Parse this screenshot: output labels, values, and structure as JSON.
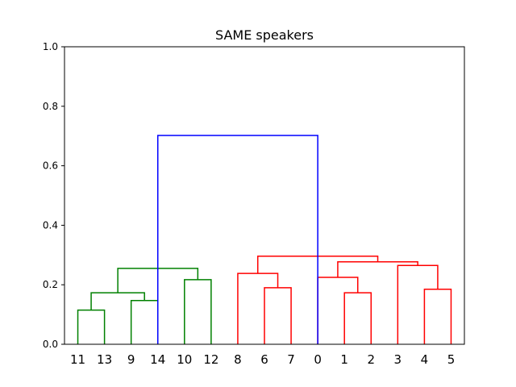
{
  "chart_data": {
    "type": "dendrogram",
    "title": "SAME speakers",
    "xlabel": "",
    "ylabel": "",
    "ylim": [
      0,
      1.0
    ],
    "yticks": [
      "0.0",
      "0.2",
      "0.4",
      "0.6",
      "0.8",
      "1.0"
    ],
    "leaf_order": [
      "11",
      "13",
      "9",
      "14",
      "10",
      "12",
      "8",
      "6",
      "7",
      "0",
      "1",
      "2",
      "3",
      "4",
      "5"
    ],
    "grid": false,
    "colors": {
      "cluster_green": "#008000",
      "cluster_red": "#ff0000",
      "root_blue": "#0000ff"
    },
    "links": [
      {
        "left": 0,
        "right": 1,
        "height": 0.115,
        "color": "cluster_green"
      },
      {
        "left": 2,
        "right": 3,
        "height": 0.147,
        "color": "cluster_green"
      },
      {
        "left": 0.5,
        "right": 2.5,
        "height": 0.173,
        "color": "cluster_green"
      },
      {
        "left": 4,
        "right": 5,
        "height": 0.217,
        "color": "cluster_green"
      },
      {
        "left": 1.5,
        "right": 4.5,
        "height": 0.255,
        "color": "cluster_green"
      },
      {
        "left": 7,
        "right": 8,
        "height": 0.19,
        "color": "cluster_red"
      },
      {
        "left": 6,
        "right": 7.5,
        "height": 0.238,
        "color": "cluster_red"
      },
      {
        "left": 10,
        "right": 11,
        "height": 0.173,
        "color": "cluster_red"
      },
      {
        "left": 9,
        "right": 10.5,
        "height": 0.225,
        "color": "cluster_red"
      },
      {
        "left": 13,
        "right": 14,
        "height": 0.185,
        "color": "cluster_red"
      },
      {
        "left": 12,
        "right": 13.5,
        "height": 0.265,
        "color": "cluster_red"
      },
      {
        "left": 9.75,
        "right": 12.75,
        "height": 0.277,
        "color": "cluster_red"
      },
      {
        "left": 6.75,
        "right": 11.25,
        "height": 0.296,
        "color": "cluster_red"
      },
      {
        "left": 3,
        "right": 9,
        "height": 0.702,
        "color": "root_blue"
      }
    ]
  }
}
